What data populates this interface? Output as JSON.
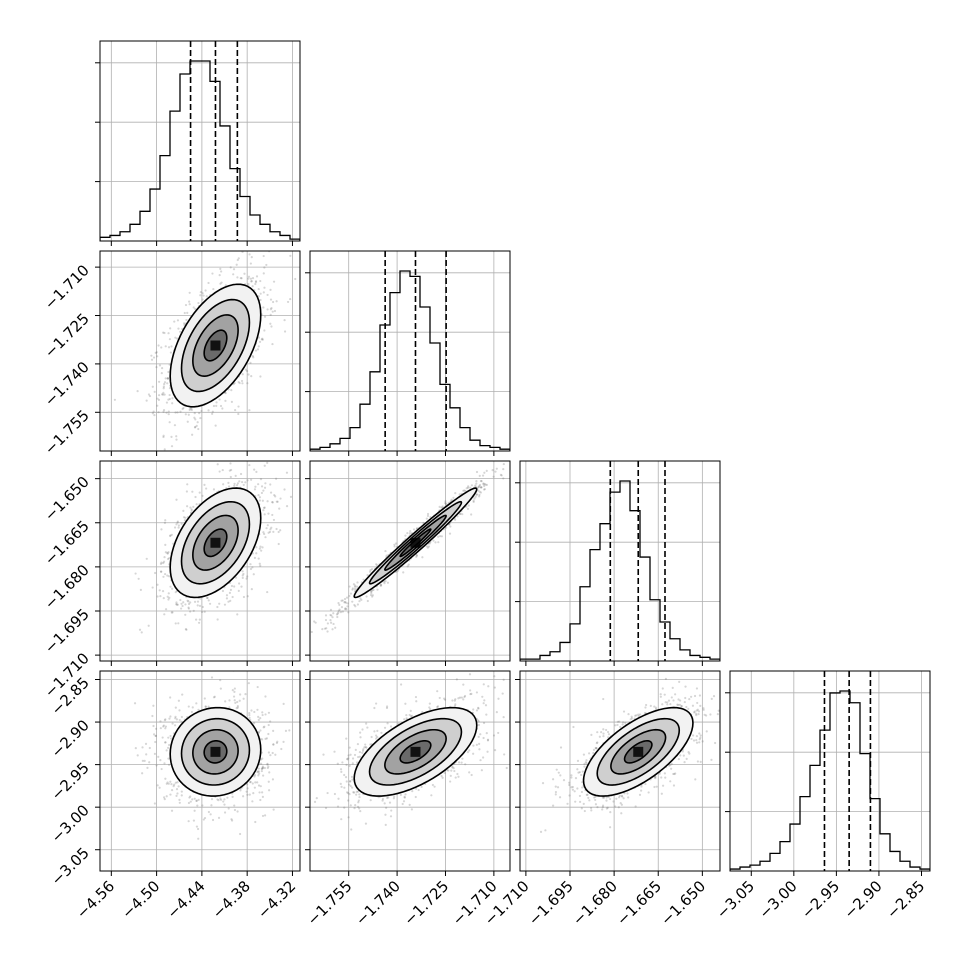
{
  "chart_data": {
    "type": "corner",
    "parameters": 4,
    "grid": true,
    "ranges": [
      [
        -4.575,
        -4.31
      ],
      [
        -1.767,
        -1.705
      ],
      [
        -1.712,
        -1.644
      ],
      [
        -3.075,
        -2.84
      ]
    ],
    "tick_values": [
      [
        -4.56,
        -4.5,
        -4.44,
        -4.38,
        -4.32
      ],
      [
        -1.755,
        -1.74,
        -1.725,
        -1.71
      ],
      [
        -1.71,
        -1.695,
        -1.68,
        -1.665,
        -1.65
      ],
      [
        -3.05,
        -3.0,
        -2.95,
        -2.9,
        -2.85
      ]
    ],
    "tick_labels": [
      [
        "−4.56",
        "−4.50",
        "−4.44",
        "−4.38",
        "−4.32"
      ],
      [
        "−1.755",
        "−1.740",
        "−1.725",
        "−1.710"
      ],
      [
        "−1.710",
        "−1.695",
        "−1.680",
        "−1.665",
        "−1.650"
      ],
      [
        "−3.05",
        "−3.00",
        "−2.95",
        "−2.90",
        "−2.85"
      ]
    ],
    "quantiles": [
      [
        -4.455,
        -4.422,
        -4.393
      ],
      [
        -1.7437,
        -1.7343,
        -1.7248
      ],
      [
        -1.6813,
        -1.6718,
        -1.6627
      ],
      [
        -2.964,
        -2.935,
        -2.91
      ]
    ],
    "histograms": [
      [
        2,
        3,
        5,
        9,
        16,
        28,
        46,
        70,
        90,
        97,
        97,
        86,
        62,
        39,
        24,
        14,
        9,
        5,
        3,
        1
      ],
      [
        1,
        2,
        4,
        7,
        13,
        26,
        44,
        70,
        88,
        100,
        97,
        80,
        60,
        37,
        24,
        13,
        6,
        3,
        2,
        1
      ],
      [
        1,
        1,
        3,
        5,
        10,
        20,
        40,
        60,
        74,
        91,
        97,
        81,
        56,
        33,
        21,
        12,
        6,
        3,
        2,
        1
      ],
      [
        1,
        2,
        3,
        5,
        9,
        15,
        24,
        38,
        54,
        72,
        91,
        92,
        86,
        60,
        37,
        19,
        10,
        5,
        2,
        1
      ]
    ],
    "pairs": [
      {
        "row": 1,
        "col": 0,
        "mean": [
          -4.422,
          -1.7343
        ],
        "sd": [
          0.03,
          0.0095
        ],
        "corr": 0.5
      },
      {
        "row": 2,
        "col": 0,
        "mean": [
          -4.422,
          -1.6718
        ],
        "sd": [
          0.03,
          0.0093
        ],
        "corr": 0.45
      },
      {
        "row": 2,
        "col": 1,
        "mean": [
          -1.7343,
          -1.6718
        ],
        "sd": [
          0.0095,
          0.0093
        ],
        "corr": 0.98
      },
      {
        "row": 3,
        "col": 0,
        "mean": [
          -4.422,
          -2.935
        ],
        "sd": [
          0.03,
          0.026
        ],
        "corr": 0.05
      },
      {
        "row": 3,
        "col": 1,
        "mean": [
          -1.7343,
          -2.935
        ],
        "sd": [
          0.0095,
          0.026
        ],
        "corr": 0.6
      },
      {
        "row": 3,
        "col": 2,
        "mean": [
          -1.6718,
          -2.935
        ],
        "sd": [
          0.0093,
          0.026
        ],
        "corr": 0.65
      }
    ],
    "contour_levels_sigma": [
      0.5,
      1.0,
      1.5,
      2.0
    ]
  }
}
